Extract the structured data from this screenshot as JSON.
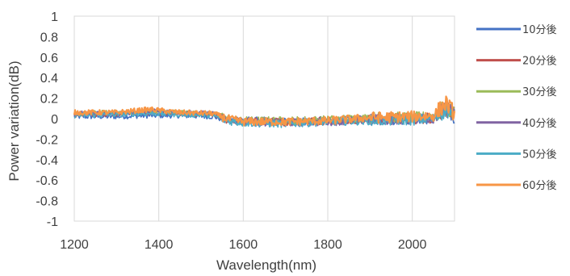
{
  "chart_data": {
    "type": "line",
    "title": "",
    "xlabel": "Wavelength(nm)",
    "ylabel": "Power variation(dB)",
    "xlim": [
      1200,
      2100
    ],
    "ylim": [
      -1,
      1
    ],
    "xticks": [
      1200,
      1400,
      1600,
      1800,
      2000
    ],
    "yticks": [
      1,
      0.8,
      0.6,
      0.4,
      0.2,
      0,
      -0.2,
      -0.4,
      -0.6,
      -0.8,
      -1
    ],
    "x_tick_labels": [
      "1200",
      "1400",
      "1600",
      "1800",
      "2000"
    ],
    "y_tick_labels": [
      "1",
      "0.8",
      "0.6",
      "0.4",
      "0.2",
      "0",
      "-0.2",
      "-0.4",
      "-0.6",
      "-0.8",
      "-1"
    ],
    "grid": "vertical",
    "legend_position": "right",
    "x": [
      1200,
      1300,
      1380,
      1450,
      1530,
      1560,
      1600,
      1700,
      1800,
      1900,
      2000,
      2050,
      2080,
      2100
    ],
    "series": [
      {
        "name": "10分後",
        "color": "#4472C4",
        "values": [
          0.02,
          0.02,
          0.03,
          0.03,
          0.02,
          -0.02,
          -0.02,
          -0.03,
          -0.02,
          -0.01,
          0.0,
          0.0,
          0.08,
          0.02
        ]
      },
      {
        "name": "20分後",
        "color": "#C0504D",
        "values": [
          0.04,
          0.05,
          0.06,
          0.05,
          0.04,
          -0.01,
          -0.03,
          -0.03,
          -0.02,
          0.0,
          0.0,
          0.01,
          0.1,
          0.03
        ]
      },
      {
        "name": "30分後",
        "color": "#9BBB59",
        "values": [
          0.05,
          0.06,
          0.07,
          0.06,
          0.05,
          0.0,
          -0.02,
          -0.02,
          -0.01,
          0.01,
          0.01,
          0.02,
          0.12,
          0.04
        ]
      },
      {
        "name": "40分後",
        "color": "#8064A2",
        "values": [
          0.05,
          0.05,
          0.07,
          0.06,
          0.05,
          0.0,
          -0.03,
          -0.04,
          -0.03,
          -0.01,
          0.0,
          0.01,
          0.1,
          0.02
        ]
      },
      {
        "name": "50分後",
        "color": "#4BACC6",
        "values": [
          0.03,
          0.04,
          0.05,
          0.04,
          0.03,
          -0.02,
          -0.04,
          -0.05,
          -0.03,
          -0.02,
          -0.01,
          0.0,
          0.09,
          0.01
        ]
      },
      {
        "name": "60分後",
        "color": "#F79646",
        "values": [
          0.06,
          0.06,
          0.09,
          0.06,
          0.05,
          0.0,
          -0.03,
          -0.03,
          -0.02,
          0.01,
          0.02,
          0.03,
          0.15,
          0.05
        ]
      }
    ]
  }
}
